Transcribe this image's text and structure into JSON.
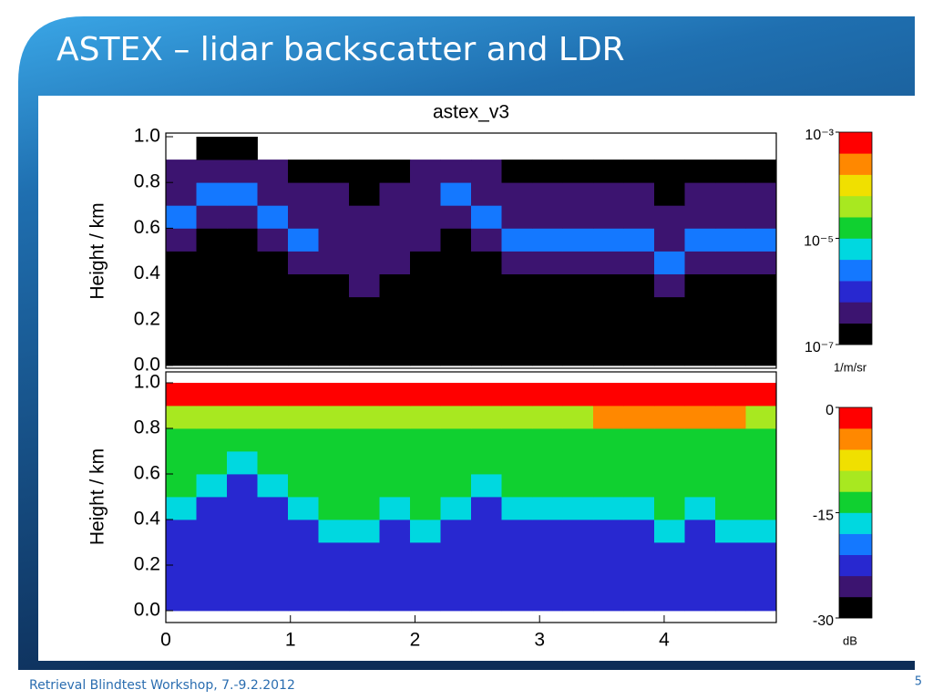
{
  "slide": {
    "title": "ASTEX – lidar backscatter and LDR",
    "footer": "Retrieval Blindtest Workshop, 7.-9.2.2012",
    "page_number": "5"
  },
  "chart_data": [
    {
      "type": "heatmap",
      "title": "astex_v3",
      "y_label": "Height / km",
      "x": [
        0.12,
        0.37,
        0.61,
        0.86,
        1.1,
        1.35,
        1.59,
        1.84,
        2.08,
        2.33,
        2.57,
        2.82,
        3.06,
        3.31,
        3.55,
        3.8,
        4.04,
        4.29,
        4.53,
        4.78
      ],
      "y": [
        0.05,
        0.15,
        0.25,
        0.35,
        0.45,
        0.55,
        0.65,
        0.75,
        0.85,
        0.95
      ],
      "z": [
        [
          -7,
          -7,
          -7,
          -7,
          -7,
          -7,
          -7,
          -7,
          -7,
          -7,
          -7,
          -7,
          -7,
          -7,
          -7,
          -7,
          -7,
          -7,
          -7,
          -7
        ],
        [
          -7,
          -7,
          -7,
          -7,
          -7,
          -7,
          -7,
          -7,
          -7,
          -7,
          -7,
          -7,
          -7,
          -7,
          -7,
          -7,
          -7,
          -7,
          -7,
          -7
        ],
        [
          -7,
          -7,
          -7,
          -7,
          -7,
          -7,
          -7,
          -7,
          -7,
          -7,
          -7,
          -7,
          -7,
          -7,
          -7,
          -7,
          -7,
          -7,
          -7,
          -7
        ],
        [
          -7,
          -7,
          -7,
          -7,
          -7,
          -7,
          -6.3,
          -7,
          -7,
          -7,
          -7,
          -7,
          -7,
          -7,
          -7,
          -7,
          -6.3,
          -7,
          -7,
          -7
        ],
        [
          -7,
          -7,
          -7,
          -7,
          -6.3,
          -6.3,
          -6.3,
          -6.3,
          -7,
          -7,
          -7,
          -6.3,
          -6.3,
          -6.3,
          -6.3,
          -6.3,
          -5.5,
          -6.3,
          -6.3,
          -6.3
        ],
        [
          -6.3,
          -7,
          -7,
          -6.3,
          -5.5,
          -6.3,
          -6.3,
          -6.3,
          -6.3,
          -7,
          -6.3,
          -5.5,
          -5.5,
          -5.5,
          -5.5,
          -5.5,
          -6.3,
          -5.5,
          -5.5,
          -5.5
        ],
        [
          -5.5,
          -6.3,
          -6.3,
          -5.5,
          -6.3,
          -6.3,
          -6.6,
          -6.3,
          -6.3,
          -6.3,
          -5.5,
          -6.3,
          -6.3,
          -6.3,
          -6.3,
          -6.3,
          -6.6,
          -6.3,
          -6.3,
          -6.3
        ],
        [
          -6.3,
          -5.5,
          -5.5,
          -6.3,
          -6.6,
          -6.6,
          -7,
          -6.6,
          -6.3,
          -5.5,
          -6.3,
          -6.6,
          -6.6,
          -6.6,
          -6.6,
          -6.6,
          -7,
          -6.6,
          -6.6,
          -6.6
        ],
        [
          -6.6,
          -6.3,
          -6.3,
          -6.6,
          -7,
          -7,
          -7,
          -7,
          -6.6,
          -6.3,
          -6.6,
          -7,
          -7,
          -7,
          -7,
          -7,
          -7,
          -7,
          -7,
          -7
        ],
        [
          null,
          -7,
          -7,
          null,
          null,
          null,
          null,
          null,
          null,
          null,
          null,
          null,
          null,
          null,
          null,
          null,
          null,
          null,
          null,
          null
        ]
      ],
      "xlim": [
        0,
        4.9
      ],
      "ylim": [
        0,
        1
      ],
      "yticks": [
        {
          "value": 0,
          "label": "0.0"
        },
        0.2,
        0.4,
        0.6,
        0.8,
        {
          "value": 1,
          "label": "1.0"
        }
      ],
      "zlim": [
        -7,
        -3
      ],
      "zticks": [
        {
          "value": -3,
          "label": "10⁻³"
        },
        {
          "value": -5,
          "label": "10⁻⁵"
        },
        {
          "value": -7,
          "label": "10⁻⁷"
        }
      ],
      "colorbar_label": "1/m/sr",
      "colormap": [
        "#000000",
        "#3c1470",
        "#2828d0",
        "#1478ff",
        "#00d8e0",
        "#10d030",
        "#a8e820",
        "#f0e000",
        "#ff8800",
        "#ff0000"
      ]
    },
    {
      "type": "heatmap",
      "y_label": "Height / km",
      "x": [
        0.12,
        0.37,
        0.61,
        0.86,
        1.1,
        1.35,
        1.59,
        1.84,
        2.08,
        2.33,
        2.57,
        2.82,
        3.06,
        3.31,
        3.55,
        3.8,
        4.04,
        4.29,
        4.53,
        4.78
      ],
      "y": [
        0.05,
        0.15,
        0.25,
        0.35,
        0.45,
        0.55,
        0.65,
        0.75,
        0.85,
        0.95
      ],
      "z": [
        [
          -24,
          -24,
          -24,
          -24,
          -24,
          -24,
          -24,
          -24,
          -24,
          -24,
          -24,
          -24,
          -24,
          -24,
          -24,
          -24,
          -24,
          -24,
          -24,
          -24
        ],
        [
          -24,
          -24,
          -24,
          -24,
          -24,
          -24,
          -24,
          -24,
          -24,
          -24,
          -24,
          -24,
          -24,
          -24,
          -24,
          -24,
          -24,
          -24,
          -24,
          -24
        ],
        [
          -24,
          -24,
          -24,
          -24,
          -24,
          -24,
          -24,
          -24,
          -24,
          -24,
          -24,
          -24,
          -24,
          -24,
          -24,
          -24,
          -24,
          -24,
          -24,
          -24
        ],
        [
          -24,
          -24,
          -24,
          -24,
          -24,
          -16,
          -16,
          -24,
          -16,
          -24,
          -24,
          -24,
          -24,
          -24,
          -24,
          -24,
          -16,
          -24,
          -16,
          -16
        ],
        [
          -16,
          -24,
          -24,
          -24,
          -16,
          -13,
          -13,
          -16,
          -13,
          -16,
          -24,
          -16,
          -16,
          -16,
          -16,
          -16,
          -13,
          -16,
          -13,
          -13
        ],
        [
          -13,
          -16,
          -24,
          -16,
          -13,
          -13,
          -13,
          -13,
          -13,
          -13,
          -16,
          -13,
          -13,
          -13,
          -13,
          -13,
          -13,
          -13,
          -13,
          -13
        ],
        [
          -13,
          -13,
          -16,
          -13,
          -13,
          -13,
          -13,
          -13,
          -13,
          -13,
          -13,
          -13,
          -13,
          -13,
          -13,
          -13,
          -13,
          -13,
          -13,
          -13
        ],
        [
          -13,
          -13,
          -13,
          -13,
          -13,
          -13,
          -13,
          -13,
          -13,
          -13,
          -13,
          -13,
          -13,
          -13,
          -13,
          -13,
          -13,
          -13,
          -13,
          -13
        ],
        [
          -10,
          -10,
          -10,
          -10,
          -10,
          -10,
          -10,
          -10,
          -10,
          -10,
          -10,
          -10,
          -10,
          -10,
          -4,
          -4,
          -4,
          -4,
          -4,
          -10
        ],
        [
          -1,
          -1,
          -1,
          -1,
          -1,
          -1,
          -1,
          -1,
          -1,
          -1,
          -1,
          -1,
          -1,
          -1,
          -1,
          -1,
          -1,
          -1,
          -1,
          -1
        ]
      ],
      "xlim": [
        0,
        4.9
      ],
      "ylim": [
        0,
        1
      ],
      "xticks": [
        0,
        1,
        2,
        3,
        4
      ],
      "yticks": [
        {
          "value": 0,
          "label": "0.0"
        },
        0.2,
        0.4,
        0.6,
        0.8,
        {
          "value": 1,
          "label": "1.0"
        }
      ],
      "zlim": [
        -30,
        0
      ],
      "zticks": [
        0,
        -15,
        -30
      ],
      "colorbar_label": "dB",
      "colormap": [
        "#000000",
        "#3c1470",
        "#2828d0",
        "#1478ff",
        "#00d8e0",
        "#10d030",
        "#a8e820",
        "#f0e000",
        "#ff8800",
        "#ff0000"
      ]
    }
  ]
}
